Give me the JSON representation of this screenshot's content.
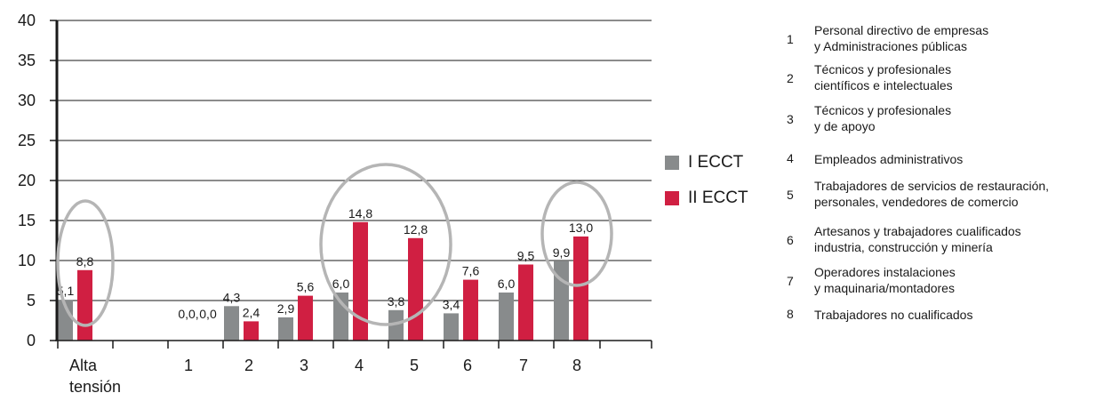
{
  "chart_data": {
    "type": "bar",
    "categories": [
      "Alta\ntensión",
      "1",
      "2",
      "3",
      "4",
      "5",
      "6",
      "7",
      "8"
    ],
    "series": [
      {
        "name": "I ECCT",
        "color": "#888b8c",
        "values": [
          5.1,
          0.0,
          4.3,
          2.9,
          6.0,
          3.8,
          3.4,
          6.0,
          9.9
        ],
        "labels": [
          "5,1",
          "0,0",
          "4,3",
          "2,9",
          "6,0",
          "3,8",
          "3,4",
          "6,0",
          "9,9"
        ]
      },
      {
        "name": "II ECCT",
        "color": "#d01f42",
        "values": [
          8.8,
          0.0,
          2.4,
          5.6,
          14.8,
          12.8,
          7.6,
          9.5,
          13.0
        ],
        "labels": [
          "8,8",
          "0,0",
          "2,4",
          "5,6",
          "14,8",
          "12,8",
          "7,6",
          "9,5",
          "13,0"
        ]
      }
    ],
    "ylim": [
      0,
      40
    ],
    "yticks": [
      0,
      5,
      10,
      15,
      20,
      25,
      30,
      35,
      40
    ],
    "grid": true,
    "highlighted_categories": [
      "Alta\ntensión",
      "4",
      "5",
      "8"
    ]
  },
  "occupations": [
    {
      "num": "1",
      "lines": [
        "Personal directivo de empresas",
        "y Administraciones públicas"
      ]
    },
    {
      "num": "2",
      "lines": [
        "Técnicos y profesionales",
        "científicos e intelectuales"
      ]
    },
    {
      "num": "3",
      "lines": [
        "Técnicos y profesionales",
        "y de apoyo"
      ]
    },
    {
      "num": "4",
      "lines": [
        "Empleados administrativos"
      ]
    },
    {
      "num": "5",
      "lines": [
        "Trabajadores de servicios de restauración,",
        "personales, vendedores de comercio"
      ]
    },
    {
      "num": "6",
      "lines": [
        "Artesanos y trabajadores cualificados",
        "industria, construcción y minería"
      ]
    },
    {
      "num": "7",
      "lines": [
        "Operadores instalaciones",
        "y maquinaria/montadores"
      ]
    },
    {
      "num": "8",
      "lines": [
        "Trabajadores no cualificados"
      ]
    }
  ]
}
